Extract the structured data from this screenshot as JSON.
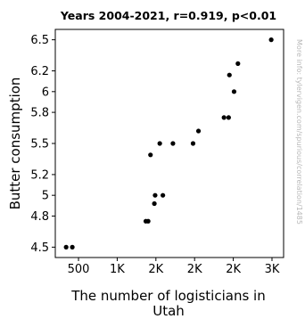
{
  "chart_data": {
    "type": "scatter",
    "title": "Years 2004-2021, r=0.919, p<0.01",
    "xlabel": [
      "The number of logisticians in",
      "Utah"
    ],
    "ylabel": "Butter consumption",
    "watermark": "More info: tylervigen.com/spurious/correlation/1485",
    "x_ticks": [
      {
        "value": 500,
        "label": "500"
      },
      {
        "value": 1000,
        "label": "1K"
      },
      {
        "value": 1500,
        "label": "2K"
      },
      {
        "value": 2000,
        "label": "2K"
      },
      {
        "value": 2500,
        "label": "2K"
      },
      {
        "value": 3000,
        "label": "3K"
      }
    ],
    "y_ticks": [
      {
        "value": 4.5,
        "label": "4.5"
      },
      {
        "value": 4.8,
        "label": "4.8"
      },
      {
        "value": 5.0,
        "label": "5"
      },
      {
        "value": 5.2,
        "label": "5.2"
      },
      {
        "value": 5.5,
        "label": "5.5"
      },
      {
        "value": 5.8,
        "label": "5.8"
      },
      {
        "value": 6.0,
        "label": "6"
      },
      {
        "value": 6.2,
        "label": "6.2"
      },
      {
        "value": 6.5,
        "label": "6.5"
      }
    ],
    "xlim": [
      200,
      3150
    ],
    "ylim": [
      4.4,
      6.6
    ],
    "grid": false,
    "marker_color": "#000000",
    "points": [
      {
        "x": 340,
        "y": 4.5
      },
      {
        "x": 420,
        "y": 4.5
      },
      {
        "x": 1370,
        "y": 4.75
      },
      {
        "x": 1400,
        "y": 4.75
      },
      {
        "x": 1430,
        "y": 5.39
      },
      {
        "x": 1480,
        "y": 4.92
      },
      {
        "x": 1490,
        "y": 5.0
      },
      {
        "x": 1550,
        "y": 5.5
      },
      {
        "x": 1590,
        "y": 5.0
      },
      {
        "x": 1720,
        "y": 5.5
      },
      {
        "x": 1980,
        "y": 5.5
      },
      {
        "x": 2050,
        "y": 5.62
      },
      {
        "x": 2380,
        "y": 5.75
      },
      {
        "x": 2440,
        "y": 5.75
      },
      {
        "x": 2450,
        "y": 6.16
      },
      {
        "x": 2510,
        "y": 6.0
      },
      {
        "x": 2560,
        "y": 6.27
      },
      {
        "x": 2990,
        "y": 6.5
      }
    ]
  }
}
